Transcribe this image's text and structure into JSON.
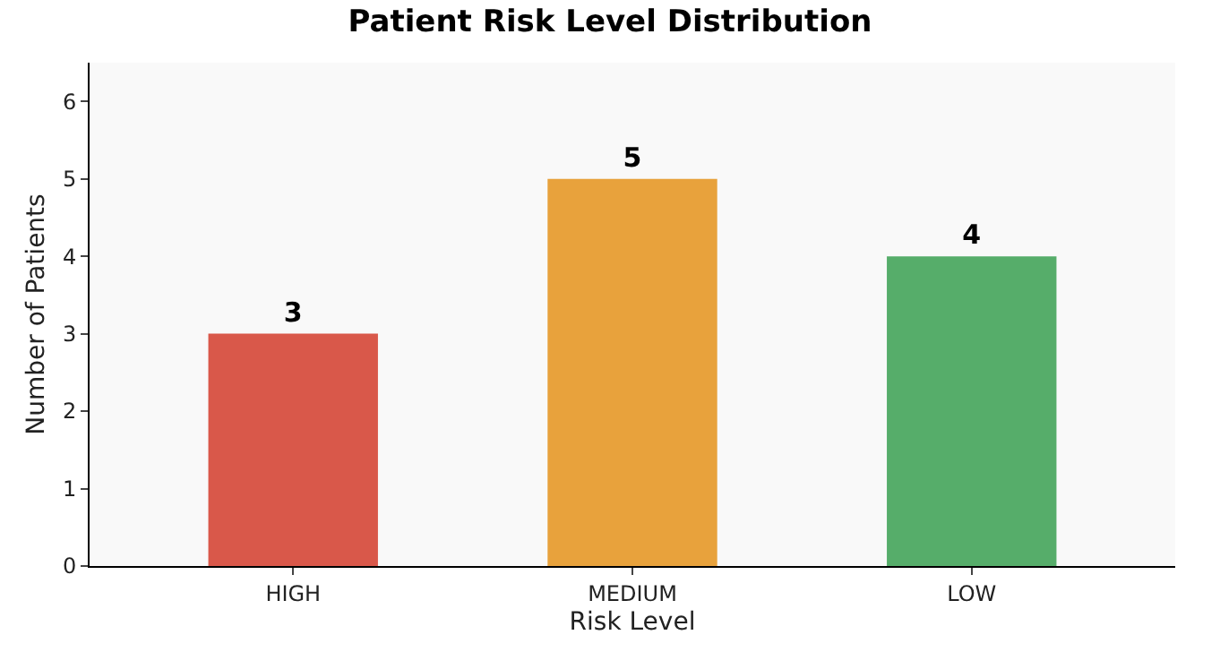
{
  "chart_data": {
    "type": "bar",
    "title": "Patient Risk Level Distribution",
    "xlabel": "Risk Level",
    "ylabel": "Number of Patients",
    "categories": [
      "HIGH",
      "MEDIUM",
      "LOW"
    ],
    "values": [
      3,
      5,
      4
    ],
    "colors": [
      "#d9584a",
      "#e8a23c",
      "#56ad6a"
    ],
    "ylim": [
      0,
      6.5
    ],
    "yticks": [
      0,
      1,
      2,
      3,
      4,
      5,
      6
    ],
    "grid": false,
    "data_labels": true
  }
}
